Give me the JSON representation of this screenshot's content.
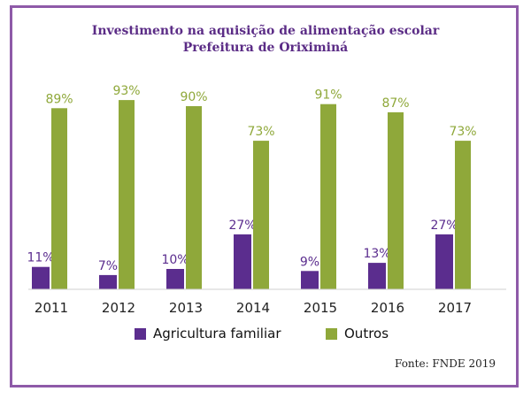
{
  "chart_data": {
    "type": "bar",
    "title": "Investimento na aquisição de alimentação escolar",
    "subtitle": "Prefeitura de Oriximiná",
    "categories": [
      "2011",
      "2012",
      "2013",
      "2014",
      "2015",
      "2016",
      "2017"
    ],
    "series": [
      {
        "name": "Agricultura familiar",
        "values": [
          11,
          7,
          10,
          27,
          9,
          13,
          27
        ],
        "labels": [
          "11%",
          "7%",
          "10%",
          "27%",
          "9%",
          "13%",
          "27%"
        ],
        "color": "#5b2d8e"
      },
      {
        "name": "Outros",
        "values": [
          89,
          93,
          90,
          73,
          91,
          87,
          73
        ],
        "labels": [
          "89%",
          "93%",
          "90%",
          "73%",
          "91%",
          "87%",
          "73%"
        ],
        "color": "#8fa83a"
      }
    ],
    "ylim": [
      0,
      100
    ],
    "grid": false,
    "legend_position": "bottom",
    "source": "Fonte: FNDE 2019"
  }
}
